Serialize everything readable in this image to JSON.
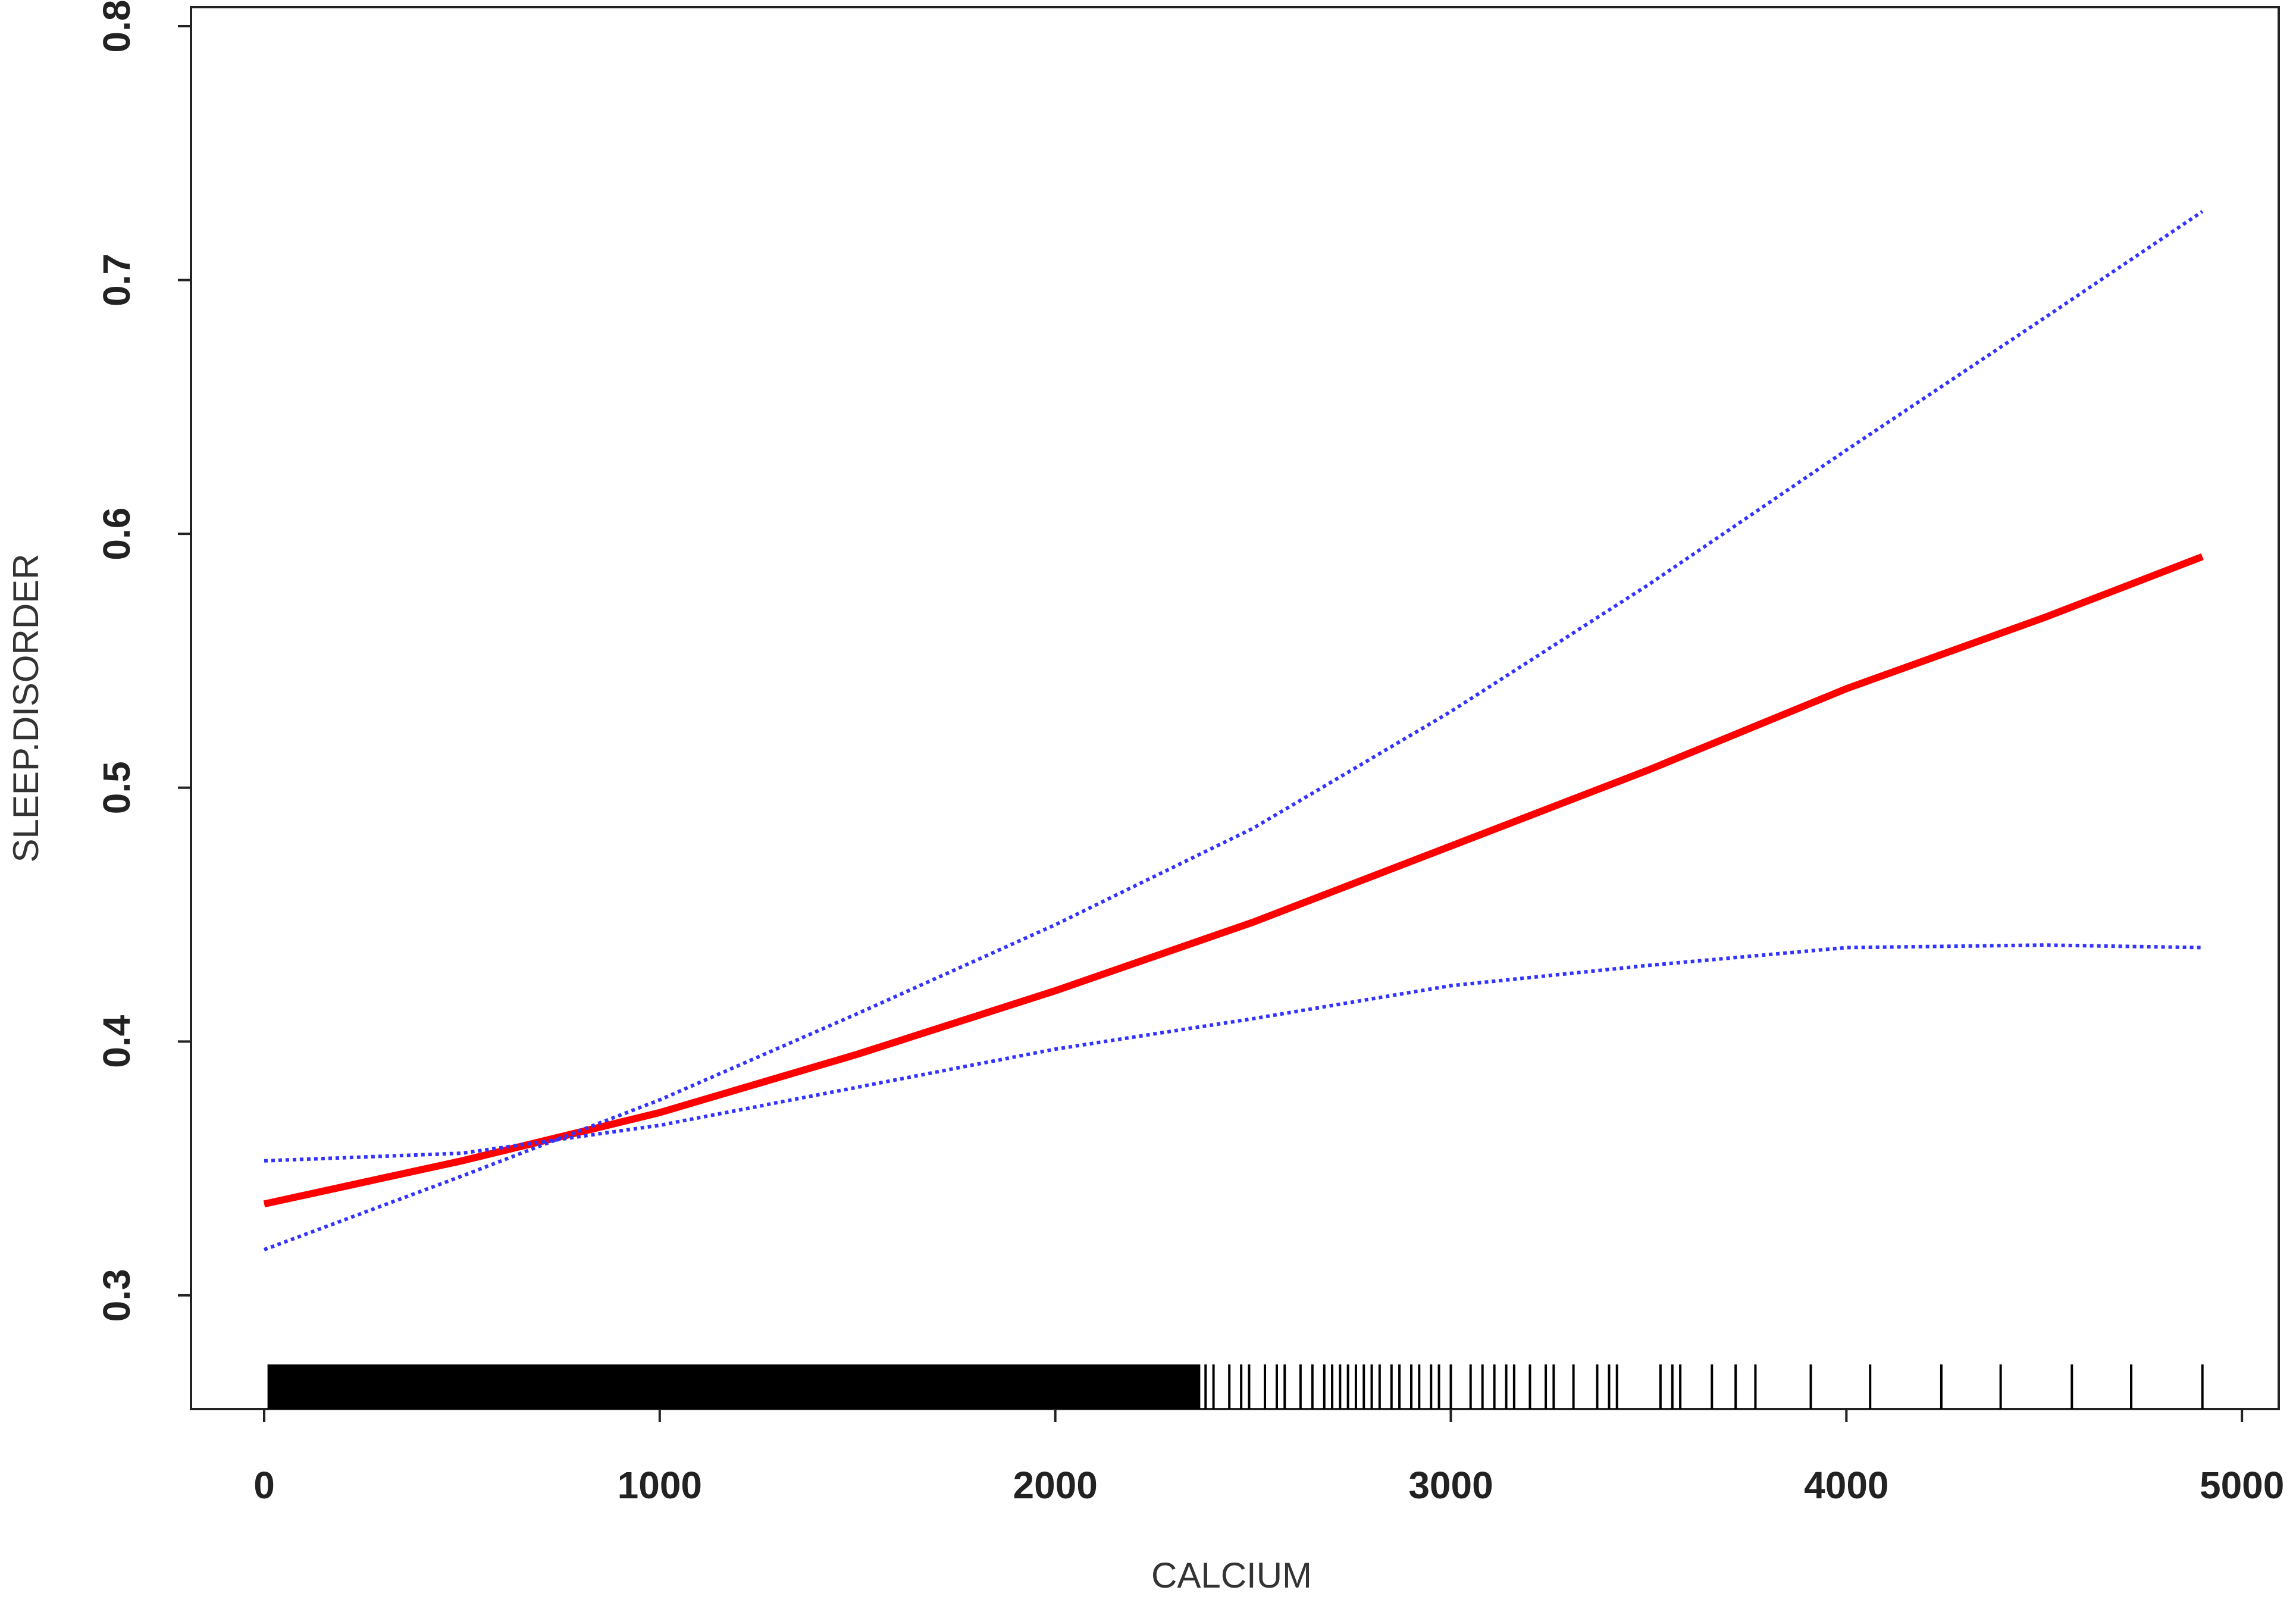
{
  "chart_data": {
    "type": "line",
    "x_label": "CALCIUM",
    "y_label": "SLEEP.DISORDER",
    "x": [
      0,
      500,
      1000,
      1500,
      2000,
      2500,
      3000,
      3500,
      4000,
      4500,
      4900
    ],
    "series": [
      {
        "color": "#ff0000",
        "style": "solid",
        "values": [
          0.336,
          0.353,
          0.372,
          0.395,
          0.42,
          0.447,
          0.477,
          0.507,
          0.539,
          0.567,
          0.591
        ]
      },
      {
        "color": "#3333ff",
        "style": "dotted",
        "values": [
          0.318,
          0.347,
          0.377,
          0.411,
          0.446,
          0.484,
          0.53,
          0.58,
          0.633,
          0.685,
          0.727
        ]
      },
      {
        "color": "#3333ff",
        "style": "dotted",
        "values": [
          0.353,
          0.356,
          0.367,
          0.382,
          0.397,
          0.409,
          0.422,
          0.43,
          0.437,
          0.438,
          0.437
        ]
      }
    ],
    "rug": [
      25,
      50,
      75,
      100,
      125,
      150,
      175,
      200,
      225,
      250,
      275,
      300,
      325,
      350,
      375,
      400,
      425,
      450,
      475,
      500,
      525,
      550,
      575,
      600,
      625,
      650,
      675,
      700,
      725,
      750,
      775,
      800,
      825,
      850,
      875,
      900,
      925,
      950,
      975,
      1000,
      1025,
      1050,
      1075,
      1100,
      1125,
      1150,
      1175,
      1200,
      1225,
      1250,
      1275,
      1300,
      1325,
      1350,
      1375,
      1400,
      1425,
      1450,
      1475,
      1500,
      1525,
      1550,
      1575,
      1600,
      1625,
      1650,
      1675,
      1700,
      1725,
      1750,
      1775,
      1800,
      1825,
      1850,
      1875,
      1900,
      1925,
      1950,
      1975,
      2000,
      2025,
      2050,
      2075,
      2100,
      2125,
      2150,
      2175,
      2200,
      2225,
      2250,
      2275,
      2300,
      2325,
      2350,
      2380,
      2400,
      2440,
      2470,
      2490,
      2530,
      2560,
      2580,
      2620,
      2650,
      2680,
      2700,
      2720,
      2740,
      2760,
      2780,
      2800,
      2820,
      2850,
      2870,
      2900,
      2920,
      2950,
      2970,
      3000,
      3050,
      3080,
      3110,
      3140,
      3160,
      3200,
      3240,
      3260,
      3310,
      3370,
      3400,
      3420,
      3530,
      3560,
      3580,
      3660,
      3720,
      3770,
      3910,
      4060,
      4240,
      4390,
      4570,
      4720,
      4900
    ],
    "xlim": [
      -185,
      5093
    ],
    "xticks": [
      0,
      1000,
      2000,
      3000,
      4000,
      5000
    ],
    "ylim": [
      0.2552,
      0.8075
    ],
    "yticks": [
      0.3,
      0.4,
      0.5,
      0.6,
      0.7,
      0.8
    ]
  }
}
